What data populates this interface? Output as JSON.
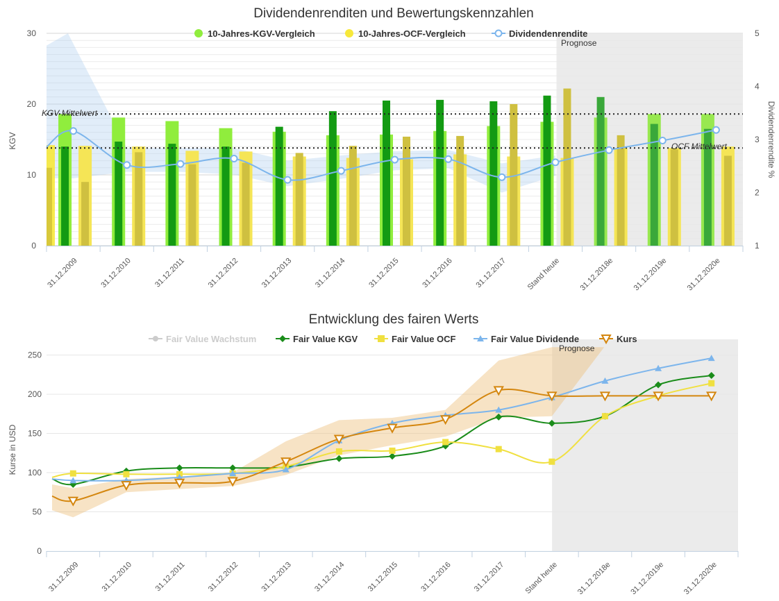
{
  "charts": [
    {
      "type": "bar",
      "title": "Dividendenrenditen und Bewertungskennzahlen",
      "categories": [
        "31.12.2009",
        "31.12.2010",
        "31.12.2011",
        "31.12.2012",
        "31.12.2013",
        "31.12.2014",
        "31.12.2015",
        "31.12.2016",
        "31.12.2017",
        "Stand heute",
        "31.12.2018e",
        "31.12.2019e",
        "31.12.2020e"
      ],
      "ylabel": "KGV",
      "y2label": "Dividendenrendite %",
      "ylim": [
        0,
        30
      ],
      "y2lim": [
        1,
        5
      ],
      "yticks": [
        0,
        10,
        20,
        30
      ],
      "y2ticks": [
        1,
        2,
        3,
        4,
        5
      ],
      "forecast_label": "Prognose",
      "forecast_start_index": 10,
      "legend": [
        {
          "name": "10-Jahres-KGV-Vergleich",
          "color": "#90ed3d",
          "marker": "circle"
        },
        {
          "name": "10-Jahres-OCF-Vergleich",
          "color": "#f7e83a",
          "marker": "circle"
        },
        {
          "name": "Dividendenrendite",
          "color": "#7cb5ec",
          "marker": "line-circle"
        }
      ],
      "reference_lines": [
        {
          "label": "KGV Mittelwert",
          "value": 18.6
        },
        {
          "label": "OCF Mittelwert",
          "value": 13.8
        }
      ],
      "kgv_comparison": [
        18.6,
        18.1,
        17.6,
        16.6,
        16.1,
        15.6,
        15.7,
        16.2,
        16.9,
        17.5,
        18.1,
        18.6,
        18.6
      ],
      "kgv": [
        14.0,
        14.7,
        14.4,
        14.0,
        16.8,
        19.0,
        20.5,
        20.6,
        20.4,
        21.2,
        21.0,
        17.2,
        16.5
      ],
      "ocf_comparison": [
        14.1,
        14.0,
        13.4,
        13.3,
        12.6,
        12.4,
        12.2,
        12.9,
        12.6,
        12.4,
        13.8,
        13.8,
        14.0
      ],
      "ocf": [
        9.0,
        13.2,
        11.5,
        11.7,
        13.1,
        14.1,
        15.4,
        15.5,
        20.0,
        22.2,
        15.6,
        13.6,
        12.7
      ],
      "left_cut": {
        "kgv_comparison": 14.2,
        "ocf_comparison": 11.0
      },
      "dividend_yield": [
        3.16,
        2.52,
        2.54,
        2.64,
        2.24,
        2.41,
        2.62,
        2.63,
        2.29,
        2.57,
        2.8,
        2.98,
        3.18
      ],
      "dividend_yield_left": 2.86,
      "dividend_range_low": [
        2.27,
        2.39,
        2.39,
        2.34,
        2.12,
        2.26,
        2.42,
        2.46,
        2.0,
        2.32
      ],
      "dividend_range_high": [
        3.77,
        2.84,
        2.84,
        2.84,
        2.6,
        2.7,
        2.78,
        2.8,
        2.55,
        2.7
      ],
      "range_left_low": 2.27,
      "range_left_high": 4.77,
      "range_peak": 5.0
    },
    {
      "type": "line",
      "title": "Entwicklung des fairen Werts",
      "categories": [
        "31.12.2009",
        "31.12.2010",
        "31.12.2011",
        "31.12.2012",
        "31.12.2013",
        "31.12.2014",
        "31.12.2015",
        "31.12.2016",
        "31.12.2017",
        "Stand heute",
        "31.12.2018e",
        "31.12.2019e",
        "31.12.2020e"
      ],
      "ylabel": "Kurse in USD",
      "ylim": [
        0,
        270
      ],
      "yticks": [
        0,
        50,
        100,
        150,
        200,
        250
      ],
      "forecast_label": "Prognose",
      "forecast_start_index": 10,
      "series": [
        {
          "name": "Fair Value Wachstum",
          "color": "#cccccc",
          "marker": "circle",
          "hidden": true,
          "values": []
        },
        {
          "name": "Fair Value KGV",
          "color": "#1a8c1a",
          "marker": "diamond",
          "values": [
            85,
            102,
            106,
            106,
            107,
            118,
            121,
            134,
            171,
            163,
            172,
            212,
            224
          ],
          "left": 92
        },
        {
          "name": "Fair Value OCF",
          "color": "#f0e040",
          "marker": "square",
          "values": [
            99,
            98,
            98,
            99,
            108,
            127,
            128,
            139,
            130,
            114,
            172,
            198,
            214
          ],
          "left": 94
        },
        {
          "name": "Fair Value Dividende",
          "color": "#7cb5ec",
          "marker": "triangle",
          "values": [
            90,
            90,
            94,
            99,
            104,
            141,
            163,
            173,
            180,
            196,
            217,
            233,
            246
          ],
          "left": 92
        },
        {
          "name": "Kurs",
          "color": "#d4860e",
          "marker": "triangle-down",
          "values": [
            64,
            84,
            87,
            89,
            114,
            143,
            157,
            168,
            205,
            198,
            198,
            198,
            198
          ],
          "left": 70
        }
      ],
      "kurs_range_low": [
        43,
        75,
        79,
        83,
        97,
        122,
        135,
        146,
        170,
        172
      ],
      "kurs_range_high": [
        80,
        92,
        95,
        100,
        140,
        167,
        170,
        180,
        243,
        260
      ],
      "kurs_range_left": [
        52,
        85
      ],
      "kurs_range_end": 260
    }
  ]
}
